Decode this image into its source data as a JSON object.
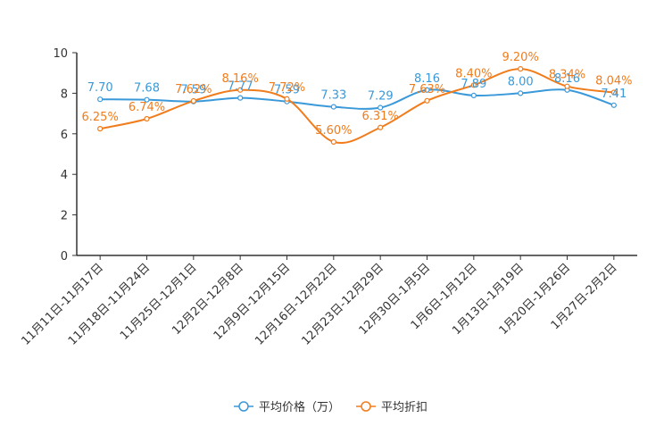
{
  "chart_data": {
    "type": "line",
    "title": "",
    "xlabel": "",
    "ylabel": "",
    "ylim": [
      0,
      10
    ],
    "yticks": [
      0,
      2,
      4,
      6,
      8,
      10
    ],
    "grid": false,
    "legend_position": "bottom",
    "categories": [
      "11月11日-11月17日",
      "11月18日-11月24日",
      "11月25日-12月1日",
      "12月2日-12月8日",
      "12月9日-12月15日",
      "12月16日-12月22日",
      "12月23日-12月29日",
      "12月30日-1月5日",
      "1月6日-1月12日",
      "1月13日-1月19日",
      "1月20日-1月26日",
      "1月27日-2月2日"
    ],
    "series": [
      {
        "name": "平均价格（万）",
        "color": "#3a99d9",
        "values": [
          7.7,
          7.68,
          7.59,
          7.77,
          7.59,
          7.33,
          7.29,
          8.16,
          7.89,
          8.0,
          8.16,
          7.41
        ],
        "labels": [
          "7.70",
          "7.68",
          "7.59",
          "7.77",
          "7.59",
          "7.33",
          "7.29",
          "8.16",
          "7.89",
          "8.00",
          "8.16",
          "7.41"
        ]
      },
      {
        "name": "平均折扣",
        "color": "#f07c1c",
        "values": [
          6.25,
          6.74,
          7.62,
          8.16,
          7.72,
          5.6,
          6.31,
          7.63,
          8.4,
          9.2,
          8.34,
          8.04
        ],
        "labels": [
          "6.25%",
          "6.74%",
          "7.62%",
          "8.16%",
          "7.72%",
          "5.60%",
          "6.31%",
          "7.63%",
          "8.40%",
          "9.20%",
          "8.34%",
          "8.04%"
        ]
      }
    ]
  }
}
